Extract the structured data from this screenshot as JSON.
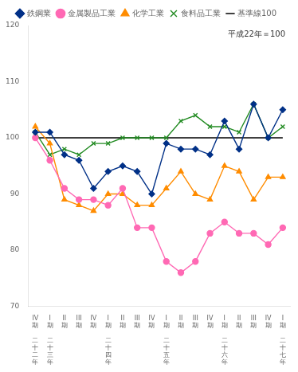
{
  "chart_data": {
    "type": "line",
    "annotation": "平成22年＝100",
    "categories": [
      "IV期",
      "I期",
      "II期",
      "III期",
      "IV期",
      "I期",
      "II期",
      "III期",
      "IV期",
      "I期",
      "II期",
      "III期",
      "IV期",
      "I期",
      "II期",
      "III期",
      "IV期",
      "I期"
    ],
    "year_labels": [
      "二十二年",
      "二十三年",
      null,
      null,
      null,
      "二十四年",
      null,
      null,
      null,
      "二十五年",
      null,
      null,
      null,
      "二十六年",
      null,
      null,
      null,
      "二十七年"
    ],
    "series": [
      {
        "name": "鉄鋼業",
        "color": "#003087",
        "marker": "diamond",
        "line_style": "solid",
        "values": [
          101,
          101,
          97,
          96,
          91,
          94,
          95,
          94,
          90,
          99,
          98,
          98,
          97,
          103,
          98,
          106,
          100,
          105
        ]
      },
      {
        "name": "金属製品工業",
        "color": "#FF69B4",
        "marker": "circle",
        "line_style": "solid",
        "values": [
          100,
          96,
          91,
          89,
          89,
          88,
          91,
          84,
          84,
          78,
          76,
          78,
          83,
          85,
          83,
          83,
          81,
          84
        ]
      },
      {
        "name": "化学工業",
        "color": "#FF8C00",
        "marker": "triangle",
        "line_style": "solid",
        "values": [
          102,
          99,
          89,
          88,
          87,
          90,
          90,
          88,
          88,
          91,
          94,
          90,
          89,
          95,
          94,
          89,
          93,
          93
        ]
      },
      {
        "name": "食料品工業",
        "color": "#228B22",
        "marker": "x",
        "line_style": "solid",
        "values": [
          101,
          97,
          98,
          97,
          99,
          99,
          100,
          100,
          100,
          100,
          103,
          104,
          102,
          102,
          101,
          106,
          100,
          102
        ]
      },
      {
        "name": "基準線100",
        "color": "#000000",
        "marker": "none",
        "line_style": "solid",
        "values": [
          100,
          100,
          100,
          100,
          100,
          100,
          100,
          100,
          100,
          100,
          100,
          100,
          100,
          100,
          100,
          100,
          100,
          100
        ]
      }
    ],
    "ylim": [
      70,
      120
    ],
    "yticks": [
      70,
      80,
      90,
      100,
      110,
      120
    ],
    "grid": false,
    "legend": "top"
  }
}
